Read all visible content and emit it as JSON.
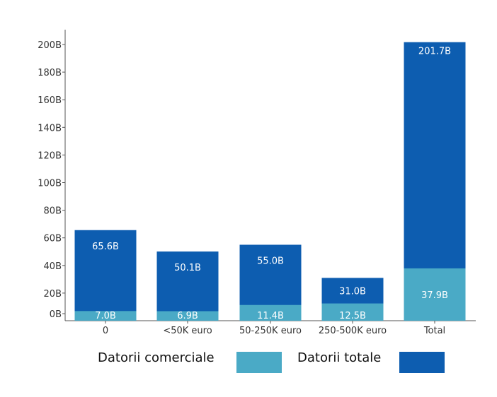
{
  "chart_data": {
    "type": "bar",
    "stacked": false,
    "overlay": true,
    "categories": [
      "0",
      "<50K euro",
      "50-250K euro",
      "250-500K euro",
      "Total"
    ],
    "series": [
      {
        "name": "Datorii totale",
        "values": [
          65.6,
          50.1,
          55.0,
          31.0,
          201.7
        ],
        "labels": [
          "65.6B",
          "50.1B",
          "55.0B",
          "31.0B",
          "201.7B"
        ],
        "color": "#0d5db0"
      },
      {
        "name": "Datorii comerciale",
        "values": [
          7.0,
          6.9,
          11.4,
          12.5,
          37.9
        ],
        "labels": [
          "7.0B",
          "6.9B",
          "11.4B",
          "12.5B",
          "37.9B"
        ],
        "color": "#4aaac6"
      }
    ],
    "yticks": [
      "0B",
      "20B",
      "40B",
      "60B",
      "80B",
      "100B",
      "120B",
      "140B",
      "160B",
      "180B",
      "200B"
    ],
    "ylim": [
      0,
      210
    ],
    "legend_position": "bottom",
    "grid": false
  },
  "legend": {
    "commercial_label": "Datorii comerciale",
    "total_label": "Datorii totale",
    "commercial_color": "#4aaac6",
    "total_color": "#0d5db0"
  }
}
